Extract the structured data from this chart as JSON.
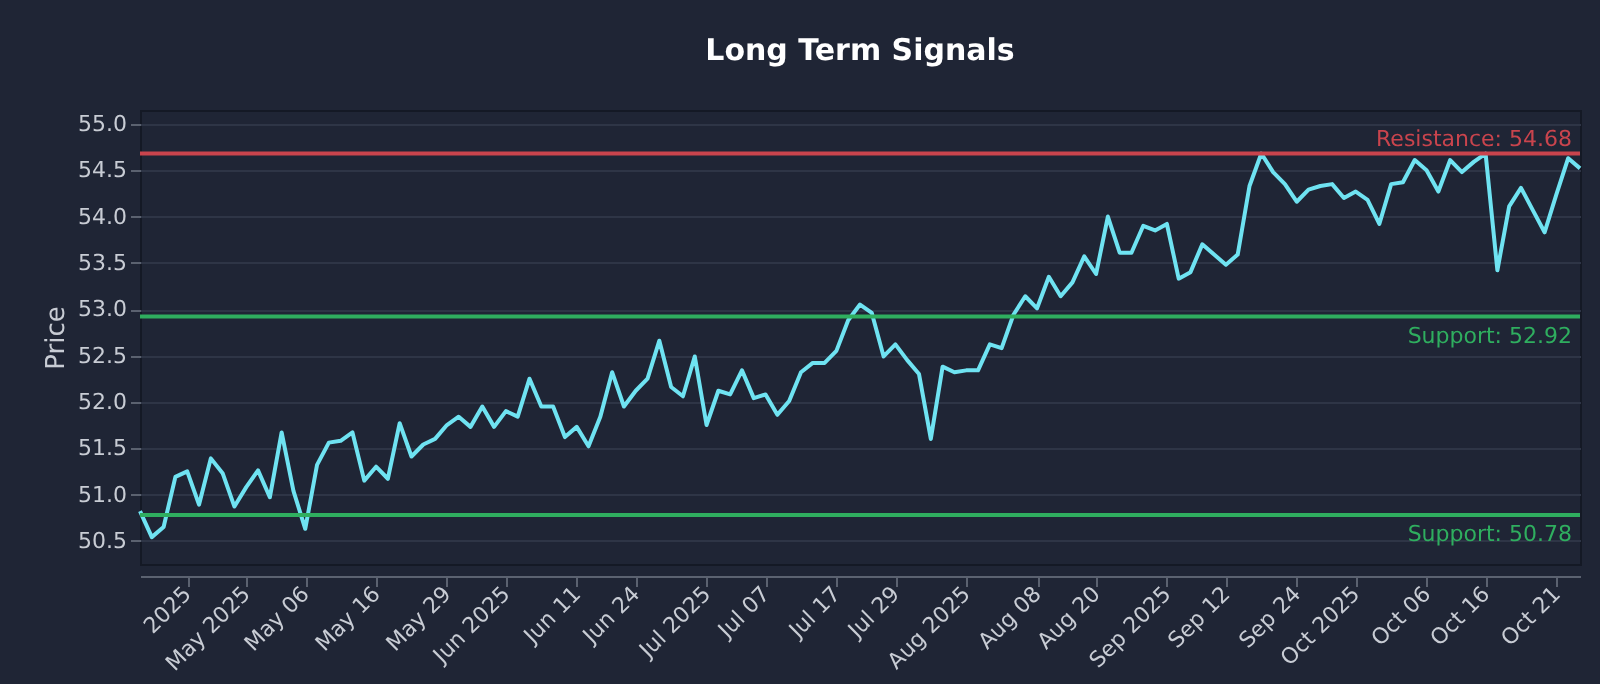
{
  "chart_data": {
    "type": "line",
    "title": "Long Term Signals",
    "ylabel": "Price",
    "categories": [
      null,
      null,
      null,
      null,
      "2025",
      null,
      null,
      null,
      null,
      "May 2025",
      null,
      null,
      null,
      null,
      "May 06",
      null,
      null,
      null,
      null,
      null,
      "May 16",
      null,
      null,
      null,
      null,
      null,
      "May 29",
      null,
      null,
      null,
      null,
      "Jun 2025",
      null,
      null,
      null,
      null,
      null,
      "Jun 11",
      null,
      null,
      null,
      null,
      "Jun 24",
      null,
      null,
      null,
      null,
      null,
      "Jul 2025",
      null,
      null,
      null,
      null,
      "Jul 07",
      null,
      null,
      null,
      null,
      null,
      "Jul 17",
      null,
      null,
      null,
      null,
      "Jul 29",
      null,
      null,
      null,
      null,
      null,
      "Aug 2025",
      null,
      null,
      null,
      null,
      null,
      "Aug 08",
      null,
      null,
      null,
      null,
      "Aug 20",
      null,
      null,
      null,
      null,
      null,
      "Sep 2025",
      null,
      null,
      null,
      null,
      "Sep 12",
      null,
      null,
      null,
      null,
      null,
      "Sep 24",
      null,
      null,
      null,
      null,
      "Oct 2025",
      null,
      null,
      null,
      null,
      null,
      "Oct 06",
      null,
      null,
      null,
      null,
      "Oct 16",
      null,
      null,
      null,
      null,
      null,
      "Oct 21",
      null,
      null
    ],
    "series": [
      {
        "color": "#6fe3f2",
        "values": [
          50.82,
          50.54,
          50.65,
          51.19,
          51.25,
          50.89,
          51.39,
          51.23,
          50.87,
          51.08,
          51.26,
          50.97,
          51.67,
          51.04,
          50.63,
          51.32,
          51.56,
          51.58,
          51.67,
          51.15,
          51.3,
          51.17,
          51.77,
          51.41,
          51.54,
          51.6,
          51.75,
          51.84,
          51.73,
          51.95,
          51.73,
          51.9,
          51.84,
          52.25,
          51.95,
          51.95,
          51.62,
          51.73,
          51.52,
          51.84,
          52.32,
          51.95,
          52.12,
          52.25,
          52.66,
          52.16,
          52.06,
          52.49,
          51.75,
          52.12,
          52.08,
          52.34,
          52.04,
          52.08,
          51.86,
          52.01,
          52.32,
          52.42,
          52.42,
          52.55,
          52.88,
          53.05,
          52.96,
          52.49,
          52.62,
          52.45,
          52.3,
          51.6,
          52.38,
          52.32,
          52.34,
          52.34,
          52.62,
          52.58,
          52.94,
          53.14,
          53.01,
          53.35,
          53.14,
          53.29,
          53.57,
          53.38,
          54.0,
          53.61,
          53.61,
          53.9,
          53.85,
          53.92,
          53.33,
          53.4,
          53.7,
          53.59,
          53.48,
          53.59,
          54.33,
          54.68,
          54.48,
          54.35,
          54.16,
          54.29,
          54.33,
          54.35,
          54.2,
          54.27,
          54.18,
          53.92,
          54.35,
          54.37,
          54.61,
          54.5,
          54.27,
          54.61,
          54.48,
          54.59,
          54.68,
          53.42,
          54.11,
          54.31,
          54.07,
          53.83,
          54.24,
          54.63,
          54.52
        ]
      }
    ],
    "ylim": [
      50.25,
      55.15
    ],
    "yticks": [
      50.5,
      {
        "value": 51,
        "label": "51.0"
      },
      51.5,
      {
        "value": 52,
        "label": "52.0"
      },
      52.5,
      {
        "value": 53,
        "label": "53.0"
      },
      53.5,
      {
        "value": 54,
        "label": "54.0"
      },
      54.5,
      {
        "value": 55,
        "label": "55.0"
      }
    ],
    "ref_lines": [
      {
        "axis": "y",
        "value": 54.68,
        "label": "Resistance: 54.68",
        "color": "#c9444d"
      },
      {
        "axis": "y",
        "value": 52.92,
        "label": "Support: 52.92",
        "color": "#2fae5f"
      },
      {
        "axis": "y",
        "value": 50.78,
        "label": "Support: 50.78",
        "color": "#2fae5f"
      }
    ],
    "grid": "y",
    "marker": "none",
    "line_style": "solid"
  }
}
